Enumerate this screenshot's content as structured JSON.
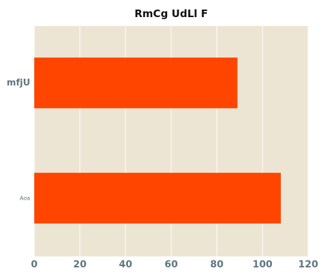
{
  "chart_data": {
    "type": "bar",
    "orientation": "horizontal",
    "title": "RmCg UdLl F",
    "xlabel": "",
    "ylabel": "",
    "categories": [
      "mfjU",
      "Aoa"
    ],
    "values": [
      89,
      108
    ],
    "xlim": [
      0,
      120
    ],
    "xticks": [
      "0",
      "20",
      "40",
      "60",
      "80",
      "100",
      "120"
    ],
    "grid": true,
    "colors": {
      "bar": "#ff4500",
      "plot_background": "#ede5d3",
      "grid": "#ffffff",
      "tick_text": "#5f7680",
      "title_text": "#111111"
    }
  }
}
